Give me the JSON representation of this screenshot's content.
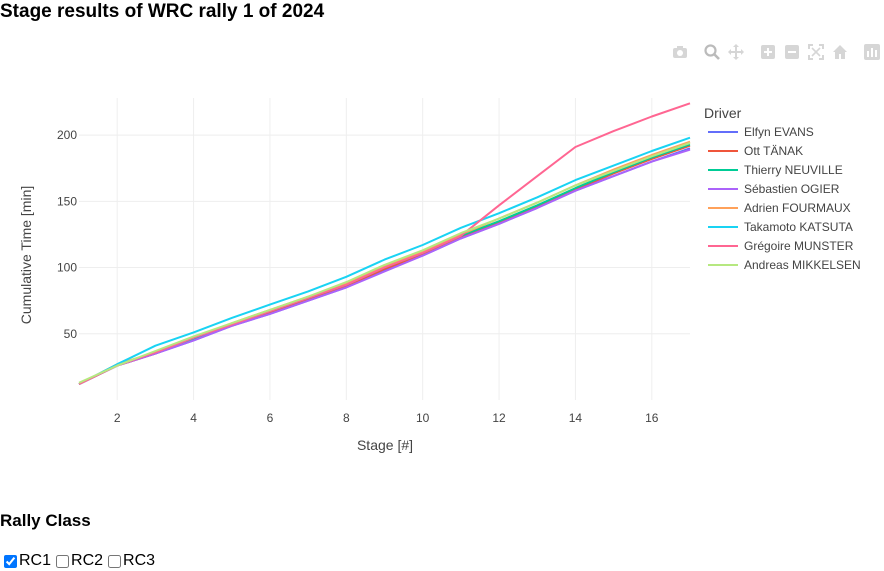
{
  "page": {
    "title": "Stage results of WRC rally 1 of 2024",
    "section_title": "Rally Class",
    "classes": [
      {
        "label": "RC1",
        "checked": true
      },
      {
        "label": "RC2",
        "checked": false
      },
      {
        "label": "RC3",
        "checked": false
      }
    ]
  },
  "modebar": {
    "icons": [
      "camera-icon",
      "zoom-icon",
      "pan-icon",
      "zoom-in-icon",
      "zoom-out-icon",
      "autoscale-icon",
      "reset-axes-icon",
      "plotly-logo-icon"
    ]
  },
  "chart_data": {
    "type": "line",
    "title": "",
    "xlabel": "Stage [#]",
    "ylabel": "Cumulative Time [min]",
    "xlim": [
      1,
      17
    ],
    "ylim": [
      0,
      228
    ],
    "xticks": [
      2,
      4,
      6,
      8,
      10,
      12,
      14,
      16
    ],
    "yticks": [
      50,
      100,
      150,
      200
    ],
    "grid": true,
    "legend_title": "Driver",
    "legend_position": "right",
    "x": [
      1,
      2,
      3,
      4,
      5,
      6,
      7,
      8,
      9,
      10,
      11,
      12,
      13,
      14,
      15,
      16,
      17
    ],
    "series": [
      {
        "name": "Elfyn EVANS",
        "color": "#636efa",
        "values": [
          12,
          26,
          35,
          45,
          56,
          65,
          75,
          85,
          98,
          109,
          122,
          133,
          145,
          158,
          169,
          180,
          190
        ]
      },
      {
        "name": "Ott TÄNAK",
        "color": "#ef553b",
        "values": [
          12,
          26,
          35,
          46,
          56,
          66,
          76,
          86,
          99,
          110,
          123,
          134,
          146,
          159,
          171,
          182,
          192
        ]
      },
      {
        "name": "Thierry NEUVILLE",
        "color": "#00cc96",
        "values": [
          12,
          26,
          36,
          46,
          57,
          67,
          77,
          87,
          100,
          111,
          124,
          135,
          147,
          160,
          172,
          183,
          193
        ]
      },
      {
        "name": "Sébastien OGIER",
        "color": "#ab63fa",
        "values": [
          12,
          26,
          35,
          45,
          56,
          65,
          75,
          85,
          97,
          109,
          122,
          133,
          145,
          158,
          169,
          180,
          189
        ]
      },
      {
        "name": "Adrien FOURMAUX",
        "color": "#ffa15a",
        "values": [
          12,
          27,
          36,
          47,
          58,
          68,
          78,
          88,
          101,
          112,
          125,
          137,
          149,
          162,
          174,
          185,
          195
        ]
      },
      {
        "name": "Takamoto KATSUTA",
        "color": "#19d3f3",
        "values": [
          12,
          27,
          41,
          51,
          62,
          72,
          82,
          93,
          106,
          117,
          130,
          141,
          153,
          166,
          177,
          188,
          198
        ]
      },
      {
        "name": "Grégoire MUNSTER",
        "color": "#ff6692",
        "values": [
          12,
          26,
          36,
          47,
          57,
          67,
          77,
          87,
          100,
          111,
          124,
          147,
          169,
          191,
          203,
          214,
          224
        ]
      },
      {
        "name": "Andreas MIKKELSEN",
        "color": "#b6e880",
        "values": [
          13,
          26,
          37,
          48,
          58,
          68,
          78,
          89,
          102,
          113,
          126,
          137,
          149,
          162,
          173,
          184,
          194
        ]
      }
    ]
  }
}
